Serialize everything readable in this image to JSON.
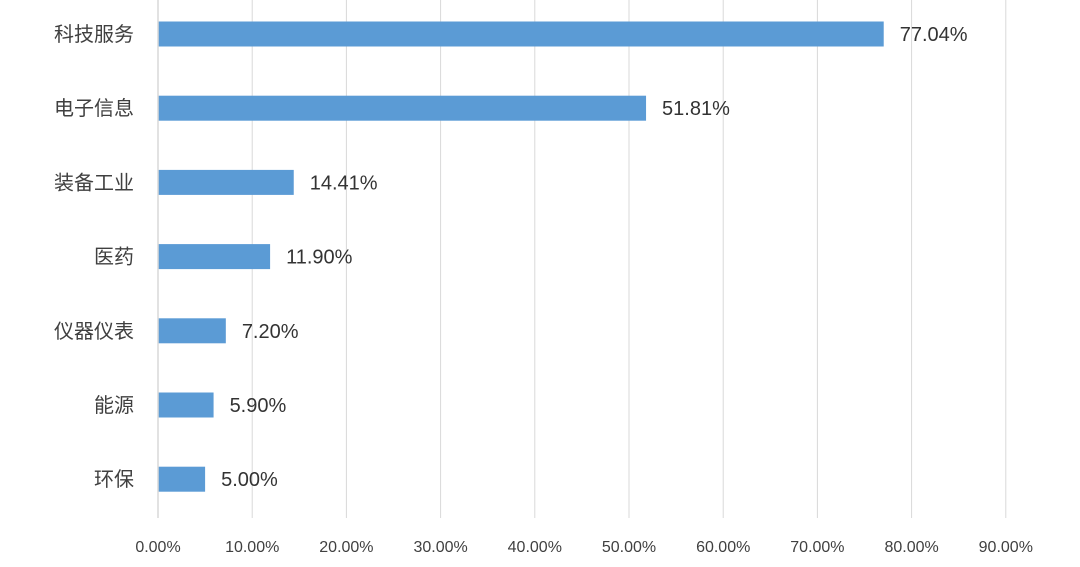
{
  "chart_data": {
    "type": "bar",
    "orientation": "horizontal",
    "categories": [
      "科技服务",
      "电子信息",
      "装备工业",
      "医药",
      "仪器仪表",
      "能源",
      "环保"
    ],
    "values": [
      77.04,
      51.81,
      14.41,
      11.9,
      7.2,
      5.9,
      5.0
    ],
    "value_labels": [
      "77.04%",
      "51.81%",
      "14.41%",
      "11.90%",
      "7.20%",
      "5.90%",
      "5.00%"
    ],
    "x_ticks": [
      "0.00%",
      "10.00%",
      "20.00%",
      "30.00%",
      "40.00%",
      "50.00%",
      "60.00%",
      "70.00%",
      "80.00%",
      "90.00%"
    ],
    "xlim": [
      0,
      90
    ],
    "grid": true,
    "legend": "none",
    "title": "",
    "xlabel": "",
    "ylabel": "",
    "bar_color": "#5b9bd5"
  }
}
